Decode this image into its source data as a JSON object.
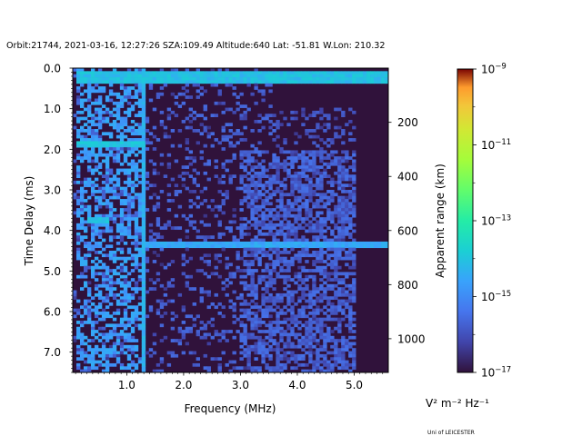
{
  "chart_data": {
    "type": "heatmap",
    "title": "Orbit:21744, 2021-03-16, 12:27:26 SZA:109.49 Altitude:640 Lat: -51.81 W.Lon: 210.32",
    "xlabel": "Frequency (MHz)",
    "ylabel": "Time Delay (ms)",
    "y2label": "Apparent range (km)",
    "xlim": [
      0.05,
      5.6
    ],
    "ylim": [
      7.5,
      0.0
    ],
    "y_inverted": true,
    "x_ticks": [
      {
        "value": 1.0,
        "label": "1.0"
      },
      {
        "value": 2.0,
        "label": "2.0"
      },
      {
        "value": 3.0,
        "label": "3.0"
      },
      {
        "value": 4.0,
        "label": "4.0"
      },
      {
        "value": 5.0,
        "label": "5.0"
      }
    ],
    "y_ticks": [
      {
        "value": 0.0,
        "label": "0.0"
      },
      {
        "value": 1.0,
        "label": "1.0"
      },
      {
        "value": 2.0,
        "label": "2.0"
      },
      {
        "value": 3.0,
        "label": "3.0"
      },
      {
        "value": 4.0,
        "label": "4.0"
      },
      {
        "value": 5.0,
        "label": "5.0"
      },
      {
        "value": 6.0,
        "label": "6.0"
      },
      {
        "value": 7.0,
        "label": "7.0"
      }
    ],
    "y2_ticks": [
      {
        "value": 200,
        "label": "200"
      },
      {
        "value": 400,
        "label": "400"
      },
      {
        "value": 600,
        "label": "600"
      },
      {
        "value": 800,
        "label": "800"
      },
      {
        "value": 1000,
        "label": "1000"
      }
    ],
    "y2_range_km": [
      -0.4,
      1124.6
    ],
    "colorbar": {
      "scale": "log",
      "range": [
        1e-17,
        1e-09
      ],
      "colormap": "turbo",
      "ticks": [
        {
          "value": 1e-17,
          "base": "10",
          "exp": "−17"
        },
        {
          "value": 1e-15,
          "base": "10",
          "exp": "−15"
        },
        {
          "value": 1e-13,
          "base": "10",
          "exp": "−13"
        },
        {
          "value": 1e-11,
          "base": "10",
          "exp": "−11"
        },
        {
          "value": 1e-09,
          "base": "10",
          "exp": "−9"
        }
      ],
      "unit_label": "V² m⁻² Hz⁻¹"
    },
    "features": [
      {
        "kind": "vertical_lines",
        "x_range": [
          0.1,
          1.3
        ],
        "intensity": 3e-15
      },
      {
        "kind": "top_band",
        "y_range": [
          0.1,
          0.35
        ],
        "x_range": [
          0.1,
          5.6
        ],
        "intensity": 1e-14
      },
      {
        "kind": "horizontal_line",
        "y": 4.35,
        "x_range": [
          1.3,
          5.6
        ],
        "intensity": 3e-15
      },
      {
        "kind": "horizontal_line",
        "y": 1.85,
        "x_range": [
          0.1,
          1.3
        ],
        "intensity": 1e-14
      },
      {
        "kind": "horizontal_line",
        "y": 3.75,
        "x_range": [
          0.3,
          0.7
        ],
        "intensity": 1e-14
      },
      {
        "kind": "vertical_line",
        "x": 1.28,
        "y_range": [
          0.0,
          7.5
        ],
        "intensity": 5e-15
      },
      {
        "kind": "diffuse_patch",
        "x_range": [
          3.0,
          5.0
        ],
        "y_range": [
          2.0,
          7.5
        ],
        "intensity": 1e-16
      }
    ],
    "background_intensity": 1e-17,
    "grid": false,
    "legend": "none"
  },
  "credit": "Uni of LEICESTER"
}
